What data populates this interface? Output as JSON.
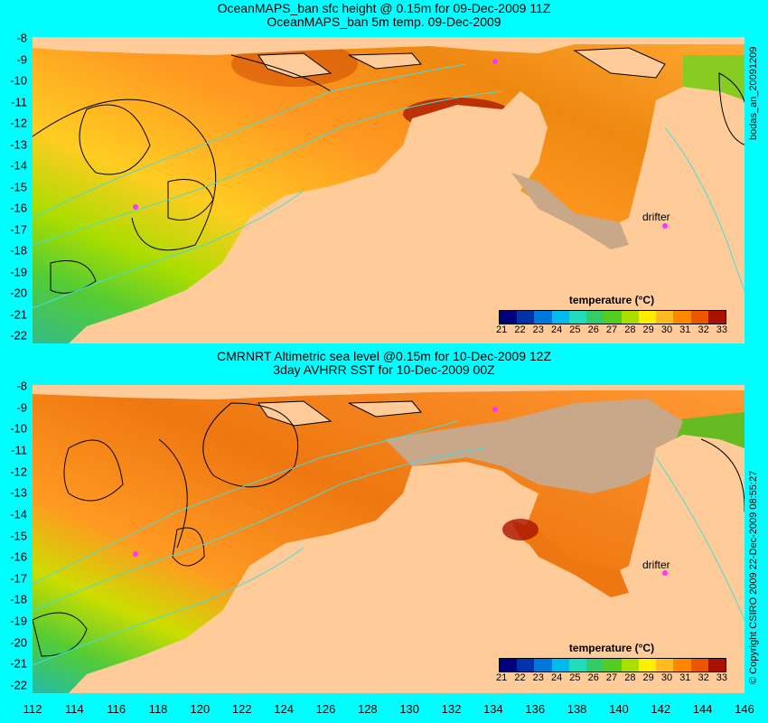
{
  "top": {
    "title_line1": "OceanMAPS_ban sfc height @ 0.15m for 09-Dec-2009 11Z",
    "title_line2": "OceanMAPS_ban 5m temp. 09-Dec-2009",
    "side_label": "bodas_an_20091209",
    "drifter_label": "drifter"
  },
  "bottom": {
    "title_line1": "CMRNRT Altimetric sea level  @0.15m  for 10-Dec-2009 12Z",
    "title_line2": "3day AVHRR SST for 10-Dec-2009 00Z",
    "side_label": "© Copyright CSIRO 2009   22-Dec-2009 08:55:27",
    "drifter_label": "drifter"
  },
  "legend": {
    "title": "temperature (°C)",
    "ticks": [
      "21",
      "22",
      "23",
      "24",
      "25",
      "26",
      "27",
      "28",
      "29",
      "30",
      "31",
      "32",
      "33"
    ],
    "colors": [
      "#00007f",
      "#0033aa",
      "#0077dd",
      "#00bbee",
      "#22ddbb",
      "#33cc66",
      "#55cc22",
      "#aadd00",
      "#ffee00",
      "#ffbb22",
      "#ff8800",
      "#ee5500",
      "#aa1100"
    ]
  },
  "axes": {
    "lat_ticks": [
      "-8",
      "-9",
      "-10",
      "-11",
      "-12",
      "-13",
      "-14",
      "-15",
      "-16",
      "-17",
      "-18",
      "-19",
      "-20",
      "-21",
      "-22"
    ],
    "lon_ticks": [
      "112",
      "114",
      "116",
      "118",
      "120",
      "122",
      "124",
      "126",
      "128",
      "130",
      "132",
      "134",
      "136",
      "138",
      "140",
      "142",
      "144",
      "146"
    ]
  },
  "colors": {
    "background": "#00ffff",
    "land": "#ffcc99",
    "missing": "#c8a888",
    "warm_sea": "#ee9922",
    "cool_sea": "#55cc33",
    "contour": "#000000",
    "isobath": "#44dddd",
    "drifter_marker": "#ff33ff"
  }
}
